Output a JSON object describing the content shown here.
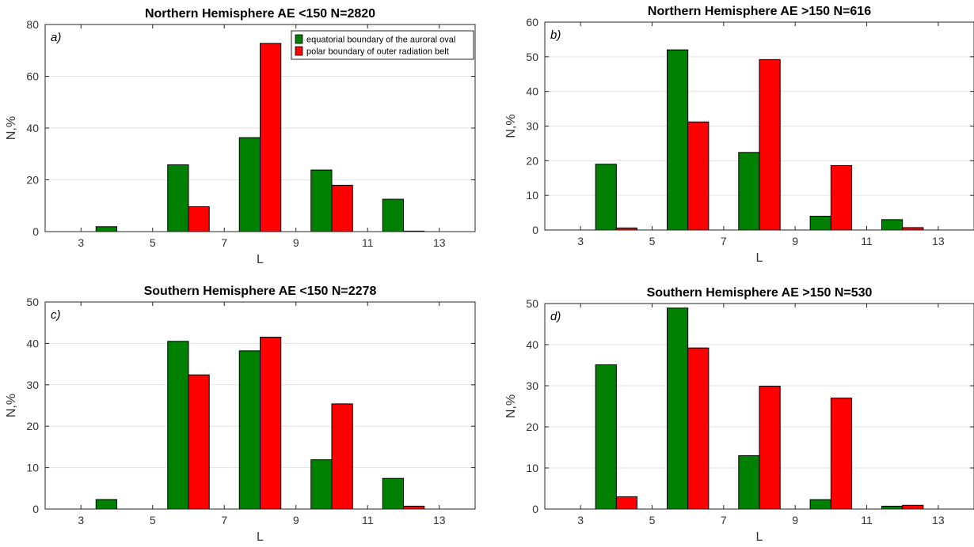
{
  "chart_data": [
    {
      "type": "bar",
      "title": "Northern Hemisphere  AE <150  N=2820",
      "panel_label": "a)",
      "xlabel": "L",
      "ylabel": "N,%",
      "xlim": [
        2,
        14
      ],
      "ylim": [
        0,
        80
      ],
      "xticks": [
        3,
        5,
        7,
        9,
        11,
        13
      ],
      "yticks": [
        0,
        20,
        40,
        60,
        80
      ],
      "grid": "horizontal",
      "legend": {
        "position": "top-right",
        "entries": [
          "equatorial boundary of the auroral oval",
          "polar boundary of outer radiation belt"
        ]
      },
      "series": [
        {
          "name": "equatorial boundary of the auroral oval",
          "color": "#008000",
          "x": [
            4,
            6,
            8,
            10,
            12
          ],
          "values": [
            1.9,
            25.8,
            36.3,
            23.8,
            12.5
          ]
        },
        {
          "name": "polar boundary of outer radiation belt",
          "color": "#ff0000",
          "x": [
            4,
            6,
            8,
            10,
            12
          ],
          "values": [
            0,
            9.6,
            72.7,
            17.9,
            0.2
          ]
        }
      ]
    },
    {
      "type": "bar",
      "title": "Northern Hemisphere  AE >150  N=616",
      "panel_label": "b)",
      "xlabel": "L",
      "ylabel": "N,%",
      "xlim": [
        2,
        14
      ],
      "ylim": [
        0,
        60
      ],
      "xticks": [
        3,
        5,
        7,
        9,
        11,
        13
      ],
      "yticks": [
        0,
        10,
        20,
        30,
        40,
        50,
        60
      ],
      "grid": "horizontal",
      "series": [
        {
          "color": "#008000",
          "x": [
            4,
            6,
            8,
            10,
            12
          ],
          "values": [
            19.0,
            52.0,
            22.4,
            4.0,
            3.0
          ]
        },
        {
          "color": "#ff0000",
          "x": [
            4,
            6,
            8,
            10,
            12
          ],
          "values": [
            0.6,
            31.2,
            49.2,
            18.6,
            0.7
          ]
        }
      ]
    },
    {
      "type": "bar",
      "title": "Southern Hemisphere  AE <150  N=2278",
      "panel_label": "c)",
      "xlabel": "L",
      "ylabel": "N,%",
      "xlim": [
        2,
        14
      ],
      "ylim": [
        0,
        50
      ],
      "xticks": [
        3,
        5,
        7,
        9,
        11,
        13
      ],
      "yticks": [
        0,
        10,
        20,
        30,
        40,
        50
      ],
      "grid": "horizontal",
      "series": [
        {
          "color": "#008000",
          "x": [
            4,
            6,
            8,
            10,
            12
          ],
          "values": [
            2.3,
            40.5,
            38.2,
            11.9,
            7.4
          ]
        },
        {
          "color": "#ff0000",
          "x": [
            4,
            6,
            8,
            10,
            12
          ],
          "values": [
            0,
            32.4,
            41.5,
            25.4,
            0.7
          ]
        }
      ]
    },
    {
      "type": "bar",
      "title": "Southern Hemisphere  AE >150  N=530",
      "panel_label": "d)",
      "xlabel": "L",
      "ylabel": "N,%",
      "xlim": [
        2,
        14
      ],
      "ylim": [
        0,
        50
      ],
      "xticks": [
        3,
        5,
        7,
        9,
        11,
        13
      ],
      "yticks": [
        0,
        10,
        20,
        30,
        40,
        50
      ],
      "grid": "horizontal",
      "series": [
        {
          "color": "#008000",
          "x": [
            4,
            6,
            8,
            10,
            12
          ],
          "values": [
            35.1,
            48.9,
            13.0,
            2.3,
            0.7
          ]
        },
        {
          "color": "#ff0000",
          "x": [
            4,
            6,
            8,
            10,
            12
          ],
          "values": [
            3.0,
            39.2,
            29.9,
            27.0,
            0.9
          ]
        }
      ]
    }
  ]
}
